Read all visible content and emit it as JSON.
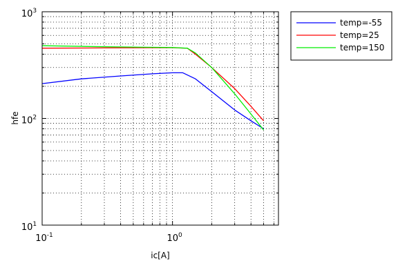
{
  "chart_data": {
    "type": "line",
    "title": "",
    "xlabel": "ic[A]",
    "ylabel": "hfe",
    "xscale": "log",
    "yscale": "log",
    "xlim": [
      0.1,
      6.5
    ],
    "ylim": [
      10,
      1000
    ],
    "grid": true,
    "legend_position": "outside-top-right",
    "x_ticks": [
      {
        "value": 0.1,
        "base": "10",
        "exp": "-1"
      },
      {
        "value": 1,
        "base": "10",
        "exp": "0"
      }
    ],
    "y_ticks": [
      {
        "value": 10,
        "base": "10",
        "exp": "1"
      },
      {
        "value": 100,
        "base": "10",
        "exp": "2"
      },
      {
        "value": 1000,
        "base": "10",
        "exp": "3"
      }
    ],
    "series": [
      {
        "name": "temp=-55",
        "color": "#0000ff",
        "x": [
          0.1,
          0.2,
          0.4,
          0.7,
          1.0,
          1.2,
          1.5,
          2.0,
          3.0,
          4.0,
          5.0
        ],
        "y": [
          212,
          235,
          250,
          262,
          268,
          268,
          235,
          178,
          120,
          95,
          80
        ]
      },
      {
        "name": "temp=25",
        "color": "#ff0000",
        "x": [
          0.1,
          0.3,
          0.6,
          1.0,
          1.3,
          1.5,
          2.0,
          3.0,
          4.0,
          5.0
        ],
        "y": [
          455,
          458,
          460,
          460,
          455,
          400,
          300,
          190,
          130,
          95
        ]
      },
      {
        "name": "temp=150",
        "color": "#00ee00",
        "x": [
          0.1,
          0.3,
          0.6,
          1.0,
          1.3,
          1.5,
          2.0,
          3.0,
          4.0,
          5.0
        ],
        "y": [
          480,
          470,
          465,
          462,
          455,
          410,
          300,
          170,
          110,
          78
        ]
      }
    ]
  }
}
